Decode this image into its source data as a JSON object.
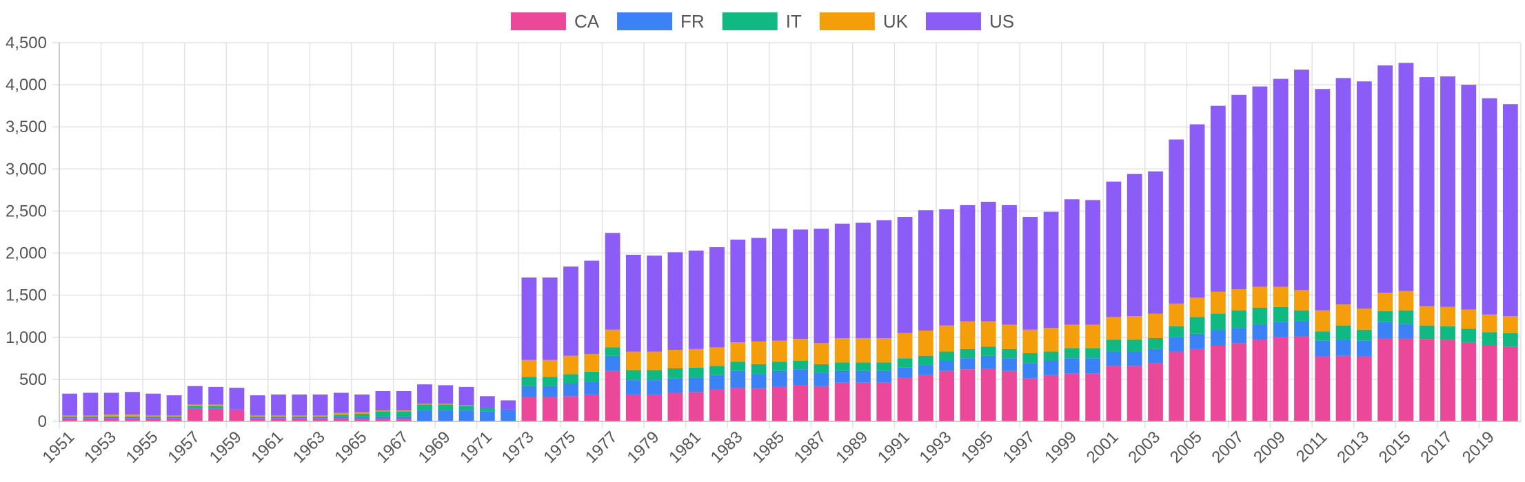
{
  "chart_data": {
    "type": "bar",
    "stacked": true,
    "legend_position": "top",
    "grid": true,
    "ylim": [
      0,
      4500
    ],
    "y_ticks": [
      "0",
      "500",
      "1,000",
      "1,500",
      "2,000",
      "2,500",
      "3,000",
      "3,500",
      "4,000",
      "4,500"
    ],
    "y_tick_values": [
      0,
      500,
      1000,
      1500,
      2000,
      2500,
      3000,
      3500,
      4000,
      4500
    ],
    "x_tick_labels": [
      "1951",
      "1953",
      "1955",
      "1957",
      "1959",
      "1961",
      "1963",
      "1965",
      "1967",
      "1969",
      "1971",
      "1973",
      "1975",
      "1977",
      "1979",
      "1981",
      "1983",
      "1985",
      "1987",
      "1989",
      "1991",
      "1993",
      "1995",
      "1997",
      "1999",
      "2001",
      "2003",
      "2005",
      "2007",
      "2009",
      "2011",
      "2013",
      "2015",
      "2017",
      "2019"
    ],
    "categories": [
      "1951",
      "1952",
      "1953",
      "1954",
      "1955",
      "1956",
      "1957",
      "1958",
      "1959",
      "1960",
      "1961",
      "1962",
      "1963",
      "1964",
      "1965",
      "1966",
      "1967",
      "1968",
      "1969",
      "1970",
      "1971",
      "1972",
      "1973",
      "1974",
      "1975",
      "1976",
      "1977",
      "1978",
      "1979",
      "1980",
      "1981",
      "1982",
      "1983",
      "1984",
      "1985",
      "1986",
      "1987",
      "1988",
      "1989",
      "1990",
      "1991",
      "1992",
      "1993",
      "1994",
      "1995",
      "1996",
      "1997",
      "1998",
      "1999",
      "2000",
      "2001",
      "2002",
      "2003",
      "2004",
      "2005",
      "2006",
      "2007",
      "2008",
      "2009",
      "2010",
      "2011",
      "2012",
      "2013",
      "2014",
      "2015",
      "2016",
      "2017",
      "2018",
      "2019",
      "2020"
    ],
    "series": [
      {
        "name": "CA",
        "color": "#ec4899",
        "values": [
          40,
          40,
          40,
          40,
          40,
          40,
          150,
          150,
          140,
          40,
          40,
          40,
          40,
          40,
          30,
          30,
          30,
          0,
          0,
          0,
          0,
          0,
          290,
          290,
          300,
          320,
          600,
          320,
          320,
          340,
          350,
          380,
          400,
          390,
          410,
          430,
          420,
          460,
          460,
          460,
          520,
          550,
          600,
          620,
          630,
          600,
          510,
          550,
          570,
          570,
          660,
          660,
          690,
          830,
          860,
          900,
          930,
          970,
          1000,
          1010,
          770,
          780,
          770,
          990,
          990,
          980,
          970,
          940,
          900,
          890
        ]
      },
      {
        "name": "FR",
        "color": "#3b82f6",
        "values": [
          10,
          10,
          10,
          10,
          10,
          10,
          10,
          10,
          0,
          10,
          10,
          10,
          10,
          20,
          20,
          30,
          30,
          130,
          130,
          130,
          120,
          140,
          130,
          130,
          150,
          150,
          180,
          170,
          170,
          170,
          170,
          170,
          200,
          170,
          190,
          190,
          160,
          140,
          140,
          140,
          120,
          120,
          120,
          130,
          150,
          150,
          180,
          170,
          180,
          180,
          170,
          170,
          170,
          170,
          180,
          180,
          180,
          180,
          180,
          180,
          190,
          190,
          190,
          190,
          170,
          0,
          0,
          0,
          0,
          0
        ]
      },
      {
        "name": "IT",
        "color": "#10b981",
        "values": [
          10,
          10,
          10,
          10,
          10,
          10,
          20,
          20,
          0,
          10,
          10,
          10,
          10,
          20,
          40,
          60,
          60,
          70,
          70,
          50,
          40,
          0,
          110,
          110,
          110,
          120,
          100,
          120,
          120,
          120,
          120,
          110,
          110,
          120,
          110,
          100,
          100,
          100,
          100,
          100,
          110,
          110,
          110,
          110,
          110,
          110,
          120,
          110,
          120,
          120,
          140,
          140,
          130,
          130,
          200,
          200,
          210,
          200,
          180,
          130,
          110,
          170,
          130,
          130,
          160,
          160,
          160,
          160,
          160,
          160
        ]
      },
      {
        "name": "UK",
        "color": "#f59e0b",
        "values": [
          10,
          10,
          20,
          20,
          10,
          10,
          20,
          20,
          0,
          10,
          10,
          10,
          10,
          20,
          20,
          10,
          10,
          10,
          10,
          10,
          0,
          0,
          200,
          200,
          220,
          210,
          210,
          220,
          220,
          220,
          220,
          220,
          230,
          270,
          250,
          260,
          250,
          290,
          290,
          290,
          300,
          300,
          310,
          330,
          300,
          290,
          280,
          280,
          280,
          280,
          270,
          280,
          290,
          270,
          230,
          260,
          250,
          250,
          240,
          240,
          250,
          250,
          250,
          220,
          230,
          230,
          230,
          230,
          210,
          200
        ]
      },
      {
        "name": "US",
        "color": "#8b5cf6",
        "values": [
          260,
          270,
          260,
          270,
          260,
          240,
          220,
          210,
          260,
          240,
          250,
          250,
          250,
          240,
          210,
          230,
          230,
          230,
          220,
          220,
          140,
          110,
          980,
          980,
          1060,
          1110,
          1150,
          1150,
          1140,
          1160,
          1170,
          1190,
          1220,
          1230,
          1330,
          1300,
          1360,
          1360,
          1370,
          1400,
          1380,
          1430,
          1380,
          1380,
          1420,
          1420,
          1340,
          1380,
          1490,
          1480,
          1610,
          1690,
          1690,
          1950,
          2060,
          2210,
          2310,
          2380,
          2470,
          2620,
          2630,
          2690,
          2700,
          2700,
          2710,
          2720,
          2740,
          2670,
          2570,
          2520
        ]
      }
    ]
  }
}
